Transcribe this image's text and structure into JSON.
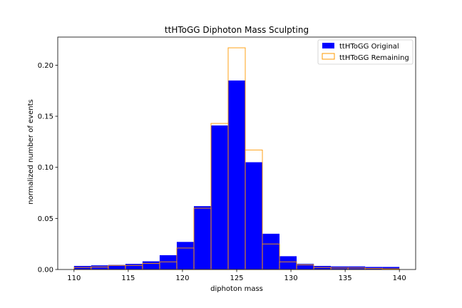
{
  "chart_data": {
    "type": "bar",
    "title": "ttHToGG Diphoton Mass Sculpting",
    "xlabel": "diphoton mass",
    "ylabel": "normalized number of events",
    "xlim": [
      108.5,
      141.5
    ],
    "ylim": [
      0,
      0.2275
    ],
    "xticks": [
      110,
      115,
      120,
      125,
      130,
      135,
      140
    ],
    "yticks": [
      0.0,
      0.05,
      0.1,
      0.15,
      0.2
    ],
    "ytick_labels": [
      "0.00",
      "0.05",
      "0.10",
      "0.15",
      "0.20"
    ],
    "bin_edges": [
      110,
      111.579,
      113.158,
      114.737,
      116.316,
      117.895,
      119.474,
      121.053,
      122.632,
      124.211,
      125.789,
      127.368,
      128.947,
      130.526,
      132.105,
      133.684,
      135.263,
      136.842,
      138.421,
      140
    ],
    "series": [
      {
        "name": "ttHToGG Original",
        "style": "filled",
        "color": "#0000ff",
        "values": [
          0.0035,
          0.004,
          0.0045,
          0.0055,
          0.008,
          0.014,
          0.027,
          0.062,
          0.141,
          0.185,
          0.105,
          0.035,
          0.013,
          0.0055,
          0.0035,
          0.003,
          0.003,
          0.0025,
          0.0025
        ]
      },
      {
        "name": "ttHToGG Remaining",
        "style": "step",
        "color": "#ff9900",
        "values": [
          0.002,
          0.0025,
          0.004,
          0.004,
          0.006,
          0.0075,
          0.021,
          0.06,
          0.143,
          0.217,
          0.117,
          0.025,
          0.0075,
          0.0045,
          0.002,
          0.0015,
          0.0015,
          0.001,
          0.0007
        ]
      }
    ],
    "legend_position": "top-right",
    "grid": false
  }
}
